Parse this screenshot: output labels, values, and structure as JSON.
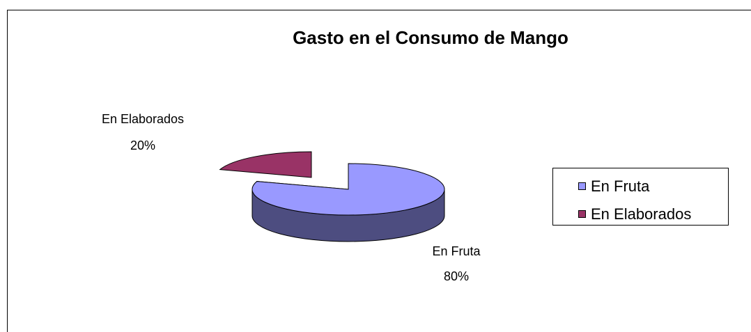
{
  "chart_data": {
    "type": "pie",
    "title": "Gasto en el Consumo de Mango",
    "categories": [
      "En Fruta",
      "En Elaborados"
    ],
    "values": [
      80,
      20
    ],
    "value_labels": [
      "80%",
      "20%"
    ],
    "colors": [
      "#9999ff",
      "#993366"
    ],
    "legend": "right"
  }
}
